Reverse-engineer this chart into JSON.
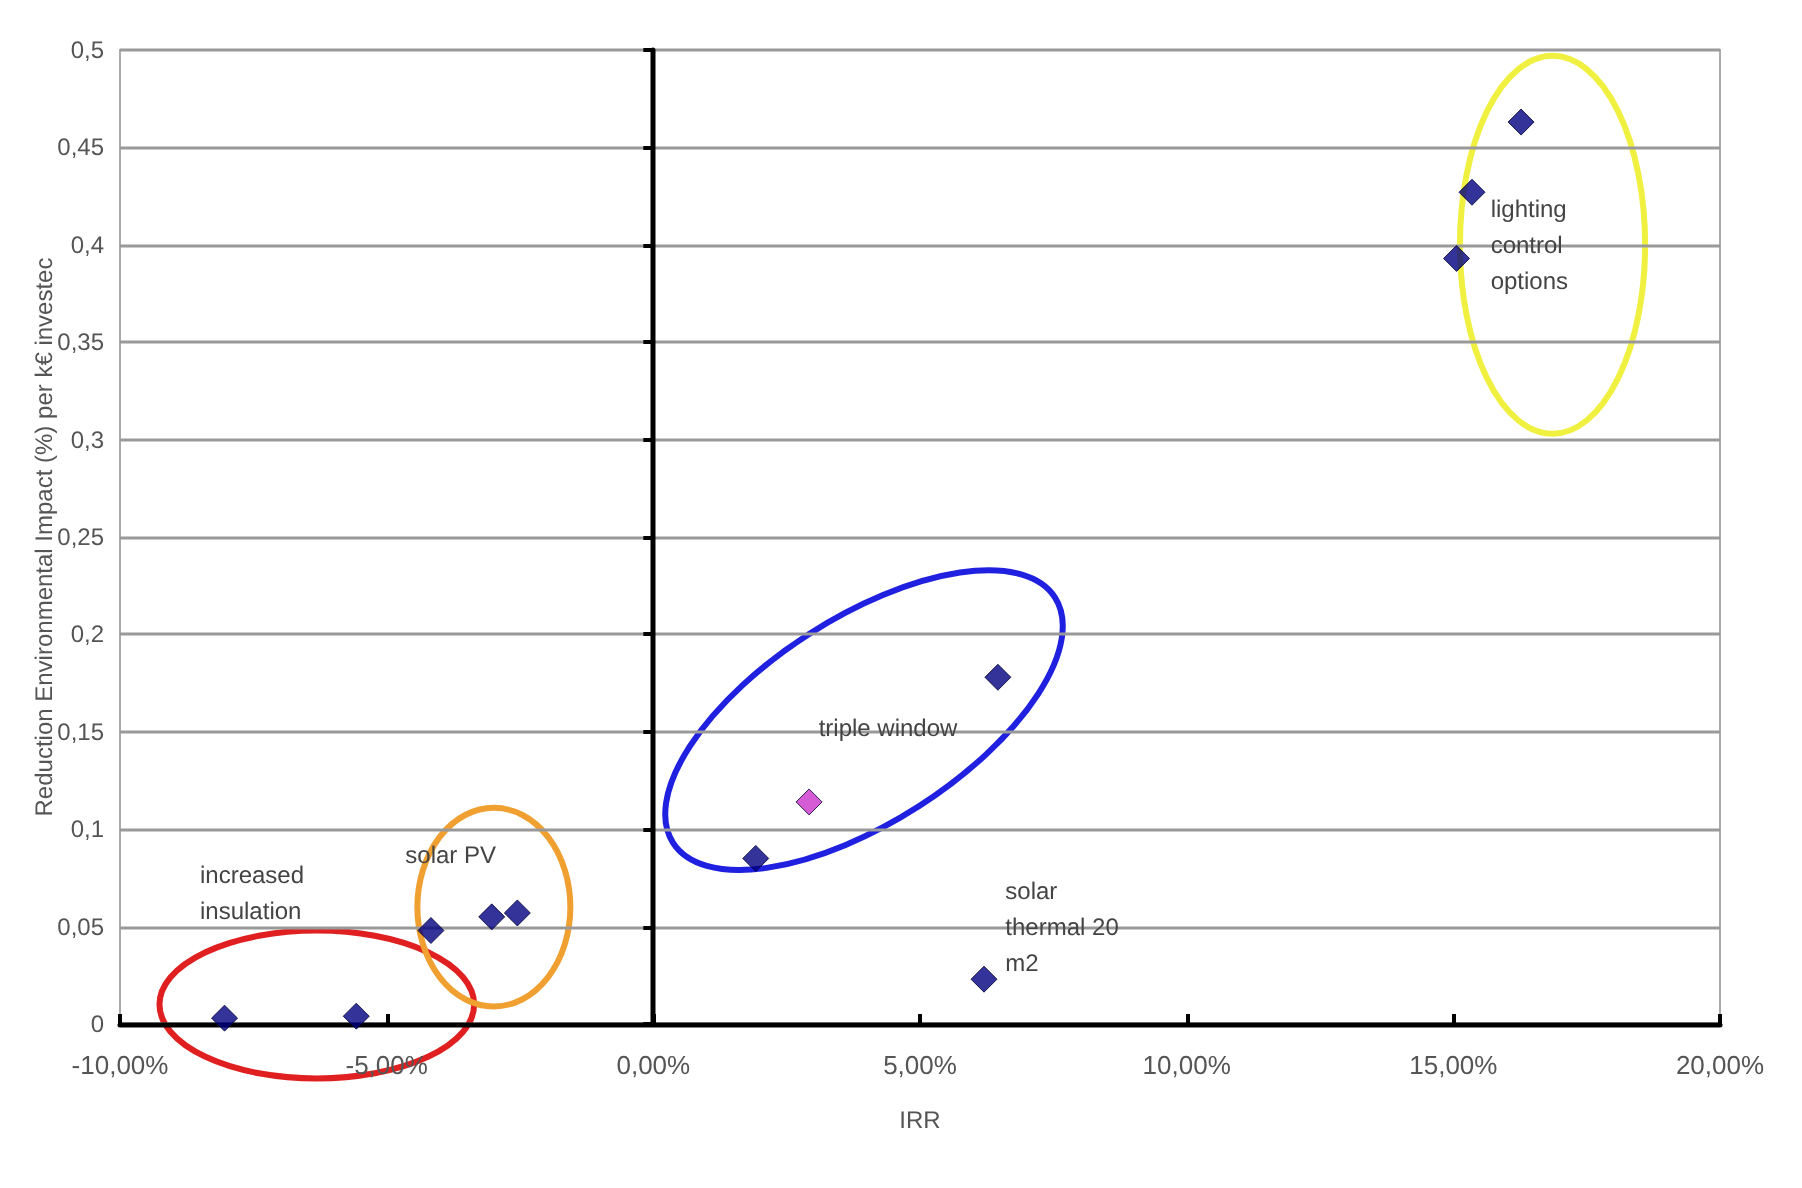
{
  "chart_data": {
    "type": "scatter",
    "xlabel": "IRR",
    "ylabel": "Reduction Environmental Impact (%) per k€ investec",
    "x": [
      -8.04,
      -5.57,
      -4.17,
      -3.03,
      -2.55,
      1.92,
      2.92,
      6.46,
      6.2,
      15.06,
      15.35,
      16.27
    ],
    "values": [
      0.003,
      0.004,
      0.048,
      0.055,
      0.057,
      0.085,
      0.114,
      0.178,
      0.023,
      0.393,
      0.427,
      0.463
    ],
    "colors": [
      "#000080",
      "#000080",
      "#000080",
      "#000080",
      "#000080",
      "#000080",
      "#cc33cc",
      "#000080",
      "#000080",
      "#000080",
      "#000080",
      "#000080"
    ],
    "marker": "diamond",
    "grid": "y",
    "xlim": [
      -10,
      20
    ],
    "xticks": [
      {
        "value": -10,
        "label": "-10,00%"
      },
      {
        "value": -5,
        "label": "-5,00%"
      },
      {
        "value": 0,
        "label": "0,00%"
      },
      {
        "value": 5,
        "label": "5,00%"
      },
      {
        "value": 10,
        "label": "10,00%"
      },
      {
        "value": 15,
        "label": "15,00%"
      },
      {
        "value": 20,
        "label": "20,00%"
      }
    ],
    "ylim": [
      0,
      0.5
    ],
    "yticks": [
      0,
      {
        "value": 0.05,
        "label": "0,05"
      },
      {
        "value": 0.1,
        "label": "0,1"
      },
      {
        "value": 0.15,
        "label": "0,15"
      },
      {
        "value": 0.2,
        "label": "0,2"
      },
      {
        "value": 0.25,
        "label": "0,25"
      },
      {
        "value": 0.3,
        "label": "0,3"
      },
      {
        "value": 0.35,
        "label": "0,35"
      },
      {
        "value": 0.4,
        "label": "0,4"
      },
      {
        "value": 0.45,
        "label": "0,45"
      },
      {
        "value": 0.5,
        "label": "0,5"
      }
    ],
    "annotations": [
      "increased\ninsulation",
      "solar PV",
      "triple window",
      "solar\nthermal 20\nm2",
      "lighting\ncontrol\noptions"
    ]
  }
}
